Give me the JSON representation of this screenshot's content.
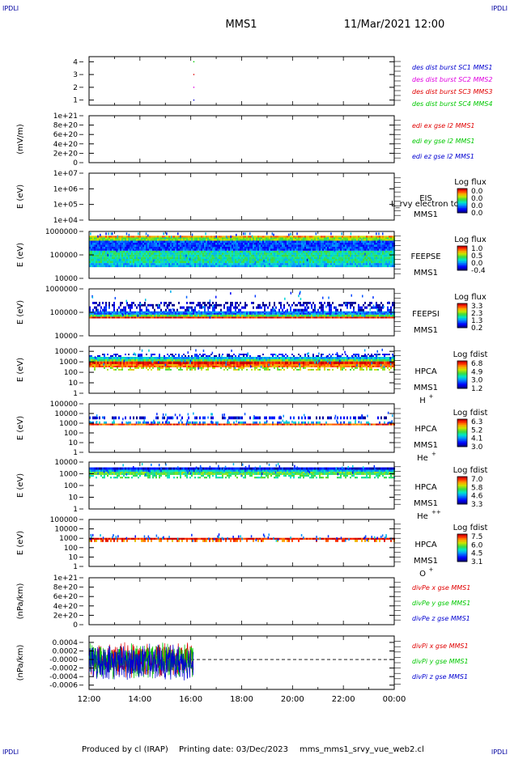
{
  "header": {
    "corner_tl": "IPDLI",
    "corner_tr": "IPDLI",
    "title": "MMS1",
    "datetime": "11/Mar/2021 12:00"
  },
  "footer": {
    "corner_bl": "IPDLI",
    "corner_br": "IPDLI",
    "produced_by": "Produced by cl (IRAP)",
    "printing_date": "Printing date: 03/Dec/2023",
    "script_name": "mms_mms1_srvy_vue_web2.cl"
  },
  "x_axis": {
    "ticks": [
      "12:00",
      "14:00",
      "16:00",
      "18:00",
      "20:00",
      "22:00",
      "00:00"
    ],
    "range": [
      "2021-03-11T12:00",
      "2021-03-12T00:00"
    ]
  },
  "colors": {
    "red": "#e00000",
    "green": "#00c800",
    "blue": "#0000d0",
    "magenta": "#e000e0",
    "navy": "#0000a0"
  },
  "chart_data": [
    {
      "type": "scatter",
      "panel": "burst",
      "ylabel": "",
      "yticks": [
        "1",
        "2",
        "3",
        "4"
      ],
      "ylim": [
        0.6,
        4.4
      ],
      "series": [
        {
          "name": "des dist burst SC1 MMS1",
          "color": "#0000d0",
          "points": [
            {
              "t": 16.12,
              "y": 1
            }
          ]
        },
        {
          "name": "des dist burst SC2 MMS2",
          "color": "#e000e0",
          "points": [
            {
              "t": 16.12,
              "y": 2
            }
          ]
        },
        {
          "name": "des dist burst SC3 MMS3",
          "color": "#e00000",
          "points": [
            {
              "t": 16.12,
              "y": 3
            }
          ]
        },
        {
          "name": "des dist burst SC4 MMS4",
          "color": "#00c800",
          "points": [
            {
              "t": 16.12,
              "y": 4
            }
          ]
        }
      ]
    },
    {
      "type": "line",
      "panel": "edi",
      "ylabel": "(mV/m)",
      "yticks": [
        "0",
        "2e+20",
        "4e+20",
        "6e+20",
        "8e+20",
        "1e+21"
      ],
      "ylim": [
        0,
        1e+21
      ],
      "zero_line": true,
      "series": [
        {
          "name": "edi ex gse l2 MMS1",
          "color": "#e00000"
        },
        {
          "name": "edi ey gse l2 MMS1",
          "color": "#00c800"
        },
        {
          "name": "edi ez gse l2 MMS1",
          "color": "#0000d0"
        }
      ]
    },
    {
      "type": "heatmap",
      "panel": "eis",
      "ylabel": "E (eV)",
      "yticks": [
        "1e+04",
        "1e+05",
        "1e+06",
        "1e+07"
      ],
      "ylim": [
        10000.0,
        10000000.0
      ],
      "label1": "EIS",
      "label2": "MMS1",
      "overlay_text": "L_rvy electron to",
      "colorbar_title": "Log flux",
      "colorbar_ticks": [
        "0.0",
        "0.0",
        "0.0",
        "0.0"
      ],
      "coverage": [
        12.0,
        12.0
      ]
    },
    {
      "type": "heatmap",
      "panel": "feepse",
      "ylabel": "E (eV)",
      "yticks": [
        "10000",
        "100000",
        "1000000"
      ],
      "ylim": [
        10000,
        1000000
      ],
      "label1": "FEEPSE",
      "label2": "MMS1",
      "colorbar_title": "Log flux",
      "colorbar_ticks": [
        "1.0",
        "0.5",
        "0.0",
        "-0.4"
      ],
      "coverage": [
        12.0,
        24.0
      ],
      "bands": [
        {
          "from": 30000,
          "to": 45000,
          "intensity": 0.35
        },
        {
          "from": 45000,
          "to": 150000,
          "intensity": 0.45
        },
        {
          "from": 150000,
          "to": 400000,
          "intensity": 0.2
        },
        {
          "from": 400000,
          "to": 550000,
          "intensity": 0.6
        },
        {
          "from": 550000,
          "to": 650000,
          "intensity": 0.8
        }
      ]
    },
    {
      "type": "heatmap",
      "panel": "feepsi",
      "ylabel": "E (eV)",
      "yticks": [
        "10000",
        "100000",
        "1000000"
      ],
      "ylim": [
        10000,
        1000000
      ],
      "label1": "FEEPSI",
      "label2": "MMS1",
      "colorbar_title": "Log flux",
      "colorbar_ticks": [
        "3.3",
        "2.3",
        "1.3",
        "0.2"
      ],
      "coverage": [
        12.0,
        24.0
      ],
      "bands": [
        {
          "from": 55000,
          "to": 65000,
          "intensity": 0.95
        },
        {
          "from": 65000,
          "to": 80000,
          "intensity": 0.55
        },
        {
          "from": 80000,
          "to": 110000,
          "intensity": 0.25
        },
        {
          "from": 110000,
          "to": 180000,
          "intensity": 0.1,
          "sparse": true
        },
        {
          "from": 180000,
          "to": 280000,
          "intensity": 0.0,
          "sparse": true
        }
      ]
    },
    {
      "type": "heatmap",
      "panel": "hpca-h",
      "ylabel": "E (eV)",
      "yticks": [
        "1",
        "10",
        "100",
        "1000",
        "10000"
      ],
      "ylim": [
        1,
        30000
      ],
      "label1": "HPCA",
      "label2": "MMS1",
      "species": "H",
      "species_sup": "+",
      "colorbar_title": "Log fdist",
      "colorbar_ticks": [
        "6.8",
        "4.9",
        "3.0",
        "1.2"
      ],
      "coverage": [
        12.0,
        24.0
      ],
      "bands": [
        {
          "from": 150,
          "to": 300,
          "intensity": 0.65,
          "sparse": true
        },
        {
          "from": 300,
          "to": 600,
          "intensity": 0.85
        },
        {
          "from": 600,
          "to": 1100,
          "intensity": 0.95
        },
        {
          "from": 1100,
          "to": 1800,
          "intensity": 0.55
        },
        {
          "from": 1800,
          "to": 3000,
          "intensity": 0.35
        },
        {
          "from": 3000,
          "to": 6000,
          "intensity": 0.1,
          "sparse": true
        }
      ]
    },
    {
      "type": "heatmap",
      "panel": "hpca-he",
      "ylabel": "E (eV)",
      "yticks": [
        "1",
        "10",
        "100",
        "1000",
        "10000",
        "100000"
      ],
      "ylim": [
        1,
        100000
      ],
      "label1": "HPCA",
      "label2": "MMS1",
      "species": "He",
      "species_sup": "+",
      "colorbar_title": "Log fdist",
      "colorbar_ticks": [
        "6.3",
        "5.2",
        "4.1",
        "3.0"
      ],
      "coverage": [
        12.0,
        24.0
      ],
      "bands": [
        {
          "from": 600,
          "to": 900,
          "intensity": 0.9
        },
        {
          "from": 900,
          "to": 1500,
          "intensity": 0.3,
          "sparse": true
        },
        {
          "from": 2500,
          "to": 5000,
          "intensity": 0.1,
          "sparse": true
        }
      ]
    },
    {
      "type": "heatmap",
      "panel": "hpca-he2",
      "ylabel": "E (eV)",
      "yticks": [
        "1",
        "10",
        "100",
        "1000",
        "10000"
      ],
      "ylim": [
        1,
        10000
      ],
      "label1": "HPCA",
      "label2": "MMS1",
      "species": "He",
      "species_sup": "++",
      "colorbar_title": "Log fdist",
      "colorbar_ticks": [
        "7.0",
        "5.8",
        "4.6",
        "3.3"
      ],
      "coverage": [
        12.0,
        24.0
      ],
      "bands": [
        {
          "from": 400,
          "to": 800,
          "intensity": 0.5,
          "sparse": true
        },
        {
          "from": 800,
          "to": 1500,
          "intensity": 0.55
        },
        {
          "from": 1500,
          "to": 2200,
          "intensity": 0.35
        },
        {
          "from": 2200,
          "to": 3500,
          "intensity": 0.1
        }
      ]
    },
    {
      "type": "heatmap",
      "panel": "hpca-o",
      "ylabel": "E (eV)",
      "yticks": [
        "1",
        "10",
        "100",
        "1000",
        "10000",
        "100000"
      ],
      "ylim": [
        1,
        100000
      ],
      "label1": "HPCA",
      "label2": "MMS1",
      "species": "O",
      "species_sup": "+",
      "colorbar_title": "Log fdist",
      "colorbar_ticks": [
        "7.5",
        "6.0",
        "4.5",
        "3.1"
      ],
      "coverage": [
        12.0,
        24.0
      ],
      "bands": [
        {
          "from": 400,
          "to": 700,
          "intensity": 0.85,
          "sparse": true
        },
        {
          "from": 700,
          "to": 1100,
          "intensity": 0.95
        }
      ]
    },
    {
      "type": "line",
      "panel": "divpe",
      "ylabel": "(nPa/km)",
      "yticks": [
        "0",
        "2e+20",
        "4e+20",
        "6e+20",
        "8e+20",
        "1e+21"
      ],
      "ylim": [
        0,
        1e+21
      ],
      "zero_line": true,
      "series": [
        {
          "name": "divPe x gse MMS1",
          "color": "#e00000"
        },
        {
          "name": "divPe y gse MMS1",
          "color": "#00c800"
        },
        {
          "name": "divPe z gse MMS1",
          "color": "#0000d0"
        }
      ]
    },
    {
      "type": "line",
      "panel": "divpi",
      "ylabel": "(nPa/km)",
      "yticks": [
        "-0.0006",
        "-0.0004",
        "-0.0002",
        "-0.0000",
        "0.0002",
        "0.0004"
      ],
      "ylim": [
        -0.0007,
        0.00055
      ],
      "zero_line": true,
      "data_span": [
        12.0,
        16.1
      ],
      "amplitude": 0.00045,
      "series": [
        {
          "name": "divPi x gse MMS1",
          "color": "#e00000"
        },
        {
          "name": "divPi y gse MMS1",
          "color": "#00c800"
        },
        {
          "name": "divPi z gse MMS1",
          "color": "#0000d0"
        }
      ]
    }
  ]
}
